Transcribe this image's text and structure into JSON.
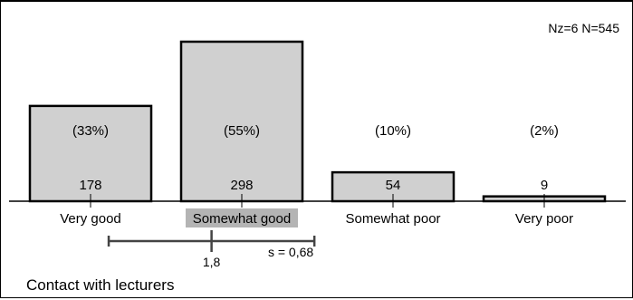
{
  "chart_data": {
    "type": "bar",
    "categories": [
      "Very good",
      "Somewhat good",
      "Somewhat poor",
      "Very poor"
    ],
    "values": [
      178,
      298,
      54,
      9
    ],
    "percent_labels": [
      "(33%)",
      "(55%)",
      "(10%)",
      "(2%)"
    ],
    "highlighted_category": "Somewhat good",
    "mean": 1.8,
    "mean_label": "1,8",
    "std_dev": 0.68,
    "std_label": "s = 0,68",
    "sample_info": "Nz=6  N=545",
    "title": "Contact with lecturers",
    "colors": {
      "bar_fill": "#d0d0d0",
      "bar_stroke": "#000000",
      "highlight": "#b4b4b4"
    }
  }
}
